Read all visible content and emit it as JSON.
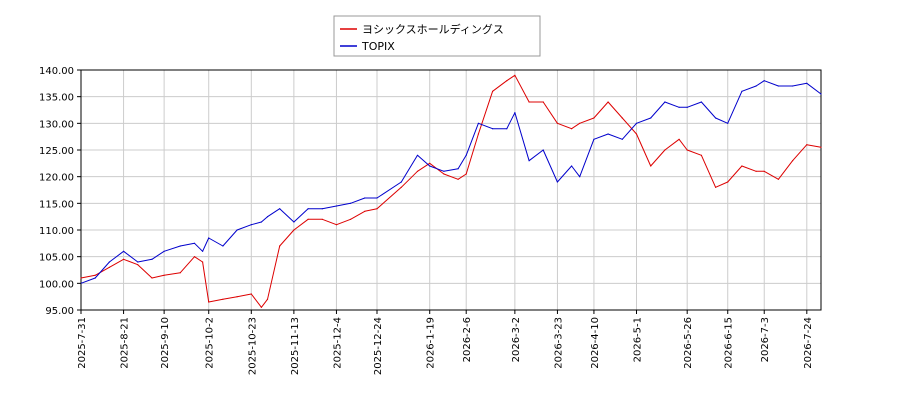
{
  "chart_data": {
    "type": "line",
    "title": "",
    "xlabel": "",
    "ylabel": "",
    "ylim": [
      95,
      140
    ],
    "yticks": [
      "95.00",
      "100.00",
      "105.00",
      "110.00",
      "115.00",
      "120.00",
      "125.00",
      "130.00",
      "135.00",
      "140.00"
    ],
    "xticks": [
      "2025-7-31",
      "2025-8-21",
      "2025-9-10",
      "2025-10-2",
      "2025-10-23",
      "2025-11-13",
      "2025-12-4",
      "2025-12-24",
      "2026-1-19",
      "2026-2-6",
      "2026-3-2",
      "2026-3-23",
      "2026-4-10",
      "2026-5-1",
      "2026-5-26",
      "2026-6-15",
      "2026-7-3",
      "2026-7-24"
    ],
    "x_start": "2025-7-31",
    "x_end": "2026-7-31",
    "grid": true,
    "legend_position": "top-center",
    "series": [
      {
        "name": "ヨシックスホールディングス",
        "color": "#dd0000",
        "x": [
          "2025-7-31",
          "2025-8-7",
          "2025-8-14",
          "2025-8-21",
          "2025-8-28",
          "2025-9-4",
          "2025-9-10",
          "2025-9-18",
          "2025-9-25",
          "2025-9-29",
          "2025-10-2",
          "2025-10-9",
          "2025-10-16",
          "2025-10-23",
          "2025-10-28",
          "2025-10-31",
          "2025-11-6",
          "2025-11-13",
          "2025-11-20",
          "2025-11-27",
          "2025-12-4",
          "2025-12-11",
          "2025-12-18",
          "2025-12-24",
          "2026-1-5",
          "2026-1-13",
          "2026-1-19",
          "2026-1-26",
          "2026-2-2",
          "2026-2-6",
          "2026-2-12",
          "2026-2-19",
          "2026-2-26",
          "2026-3-2",
          "2026-3-9",
          "2026-3-16",
          "2026-3-23",
          "2026-3-30",
          "2026-4-3",
          "2026-4-10",
          "2026-4-17",
          "2026-4-24",
          "2026-5-1",
          "2026-5-8",
          "2026-5-15",
          "2026-5-22",
          "2026-5-26",
          "2026-6-2",
          "2026-6-9",
          "2026-6-15",
          "2026-6-22",
          "2026-6-29",
          "2026-7-3",
          "2026-7-10",
          "2026-7-17",
          "2026-7-24",
          "2026-7-31"
        ],
        "values": [
          101,
          101.5,
          103,
          104.5,
          103.5,
          101,
          101.5,
          102,
          105,
          104,
          96.5,
          97,
          97.5,
          98,
          95.5,
          97,
          107,
          110,
          112,
          112,
          111,
          112,
          113.5,
          114,
          118,
          121,
          122.5,
          120.5,
          119.5,
          120.5,
          128,
          136,
          138,
          139,
          134,
          134,
          130,
          129,
          130,
          131,
          134,
          131,
          128,
          122,
          125,
          127,
          125,
          124,
          118,
          119,
          122,
          121,
          121,
          119.5,
          123,
          126,
          125.5
        ]
      },
      {
        "name": "TOPIX",
        "color": "#0000cc",
        "x": [
          "2025-7-31",
          "2025-8-7",
          "2025-8-14",
          "2025-8-21",
          "2025-8-28",
          "2025-9-4",
          "2025-9-10",
          "2025-9-18",
          "2025-9-25",
          "2025-9-29",
          "2025-10-2",
          "2025-10-9",
          "2025-10-16",
          "2025-10-23",
          "2025-10-28",
          "2025-10-31",
          "2025-11-6",
          "2025-11-13",
          "2025-11-20",
          "2025-11-27",
          "2025-12-4",
          "2025-12-11",
          "2025-12-18",
          "2025-12-24",
          "2026-1-5",
          "2026-1-13",
          "2026-1-19",
          "2026-1-26",
          "2026-2-2",
          "2026-2-6",
          "2026-2-12",
          "2026-2-19",
          "2026-2-26",
          "2026-3-2",
          "2026-3-9",
          "2026-3-16",
          "2026-3-23",
          "2026-3-30",
          "2026-4-3",
          "2026-4-10",
          "2026-4-17",
          "2026-4-24",
          "2026-5-1",
          "2026-5-8",
          "2026-5-15",
          "2026-5-22",
          "2026-5-26",
          "2026-6-2",
          "2026-6-9",
          "2026-6-15",
          "2026-6-22",
          "2026-6-29",
          "2026-7-3",
          "2026-7-10",
          "2026-7-17",
          "2026-7-24",
          "2026-7-31"
        ],
        "values": [
          100,
          101,
          104,
          106,
          104,
          104.5,
          106,
          107,
          107.5,
          106,
          108.5,
          107,
          110,
          111,
          111.5,
          112.5,
          114,
          111.5,
          114,
          114,
          114.5,
          115,
          116,
          116,
          119,
          124,
          122,
          121,
          121.5,
          124,
          130,
          129,
          129,
          132,
          123,
          125,
          119,
          122,
          120,
          127,
          128,
          127,
          130,
          131,
          134,
          133,
          133,
          134,
          131,
          130,
          136,
          137,
          138,
          137,
          137,
          137.5,
          135.5
        ]
      }
    ]
  }
}
